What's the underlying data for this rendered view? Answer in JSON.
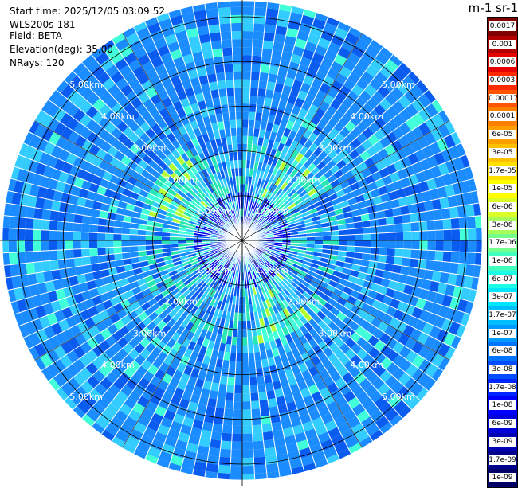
{
  "header": {
    "start_time": "Start time: 2025/12/05 03:09:52",
    "instrument": "WLS200s-181",
    "field": "Field: BETA",
    "elevation": "Elevation(deg): 35.00",
    "nrays": "NRays: 120"
  },
  "colorbar": {
    "title": "m-1 sr-1",
    "labels": [
      "0.0017",
      "0.001",
      "0.0006",
      "0.0003",
      "0.00017",
      "0.0001",
      "6e-05",
      "3e-05",
      "1.7e-05",
      "1e-05",
      "6e-06",
      "3e-06",
      "1.7e-06",
      "1e-06",
      "6e-07",
      "3e-07",
      "1.7e-07",
      "1e-07",
      "6e-08",
      "3e-08",
      "1.7e-08",
      "1e-08",
      "6e-09",
      "3e-09",
      "1.7e-09",
      "1e-09"
    ],
    "colors": [
      "#7f0000",
      "#b30000",
      "#e60000",
      "#ff2a00",
      "#ff5500",
      "#ff7f00",
      "#ffa000",
      "#ffc000",
      "#ffe000",
      "#ffff00",
      "#d9ff26",
      "#a6ff59",
      "#73ff8c",
      "#40ffbf",
      "#1affe6",
      "#00e6ff",
      "#00bfff",
      "#0099ff",
      "#0073ff",
      "#004dff",
      "#0026ff",
      "#0000ff",
      "#0000d9",
      "#0000b3",
      "#00008c",
      "#000066"
    ]
  },
  "ppi": {
    "nrays": 120,
    "range_rings_km": [
      1.0,
      2.0,
      3.0,
      4.0,
      5.0
    ],
    "ring_label_text": [
      "1.00km",
      "2.00km",
      "3.00km",
      "4.00km",
      "5.00km"
    ],
    "max_range_km": 5.35,
    "field_colors": {
      "background_blue": "#1a8cff",
      "mid_blue": "#0a5cf0",
      "deep_blue": "#0000e6",
      "light_cyan": "#33ccff",
      "aqua": "#40ffd9",
      "teal": "#26e6b3",
      "yellow_green": "#b3ff33",
      "ray_separator": "#ffffff",
      "grid_line": "#000000"
    }
  }
}
